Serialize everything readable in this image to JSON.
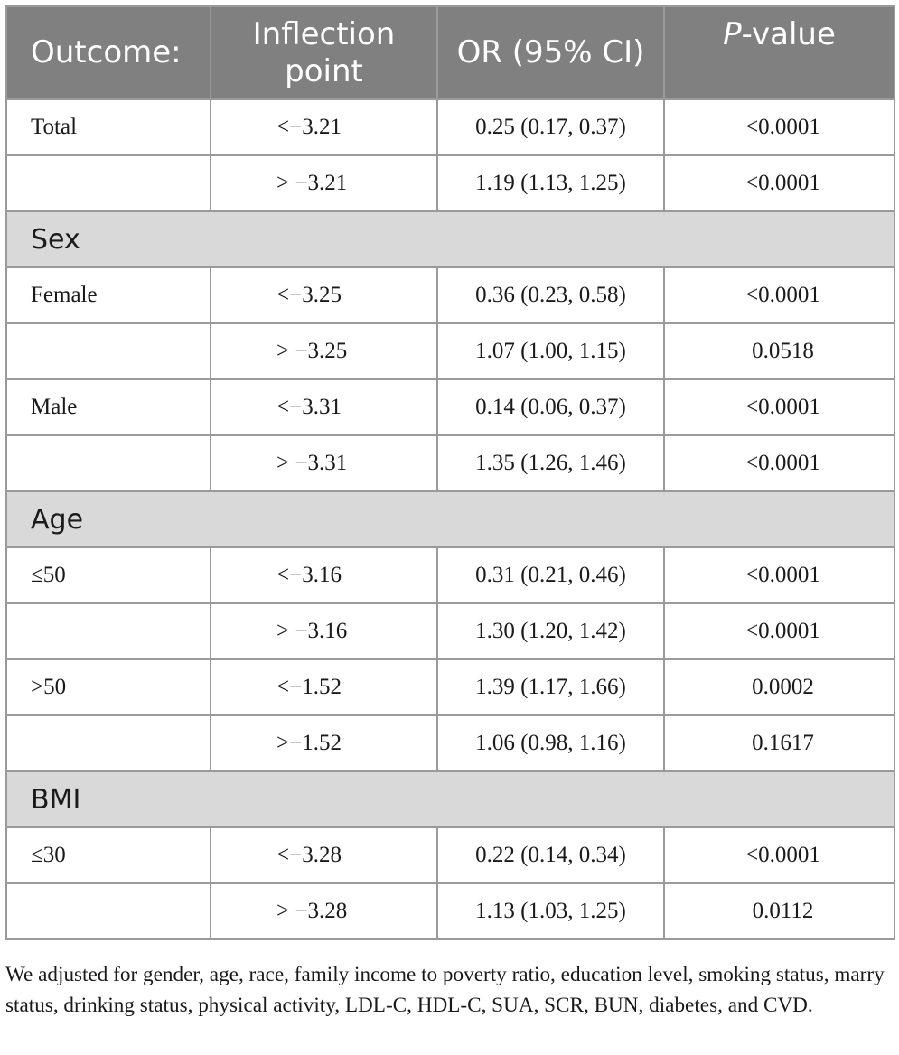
{
  "header": {
    "outcome": "Outcome:",
    "inflection": "Inflection point",
    "or": "OR (95% CI)",
    "p_italic": "P",
    "p_rest": "-value"
  },
  "rows": [
    {
      "type": "data",
      "label": "Total",
      "ip": "<−3.21",
      "or": "0.25 (0.17, 0.37)",
      "p": "<0.0001"
    },
    {
      "type": "data",
      "label": "",
      "ip": "> −3.21",
      "or": "1.19 (1.13, 1.25)",
      "p": "<0.0001"
    },
    {
      "type": "group",
      "label": "Sex"
    },
    {
      "type": "data",
      "label": "Female",
      "ip": "<−3.25",
      "or": "0.36 (0.23, 0.58)",
      "p": "<0.0001"
    },
    {
      "type": "data",
      "label": "",
      "ip": "> −3.25",
      "or": "1.07 (1.00, 1.15)",
      "p": "0.0518"
    },
    {
      "type": "data",
      "label": "Male",
      "ip": "<−3.31",
      "or": "0.14 (0.06, 0.37)",
      "p": "<0.0001"
    },
    {
      "type": "data",
      "label": "",
      "ip": "> −3.31",
      "or": "1.35 (1.26, 1.46)",
      "p": "<0.0001"
    },
    {
      "type": "group",
      "label": "Age"
    },
    {
      "type": "data",
      "label": "≤50",
      "ip": "<−3.16",
      "or": "0.31 (0.21, 0.46)",
      "p": "<0.0001"
    },
    {
      "type": "data",
      "label": "",
      "ip": "> −3.16",
      "or": "1.30 (1.20, 1.42)",
      "p": "<0.0001"
    },
    {
      "type": "data",
      "label": ">50",
      "ip": "<−1.52",
      "or": "1.39 (1.17, 1.66)",
      "p": "0.0002"
    },
    {
      "type": "data",
      "label": "",
      "ip": ">−1.52",
      "or": "1.06 (0.98, 1.16)",
      "p": "0.1617"
    },
    {
      "type": "group",
      "label": "BMI"
    },
    {
      "type": "data",
      "label": "≤30",
      "ip": "<−3.28",
      "or": "0.22 (0.14, 0.34)",
      "p": "<0.0001"
    },
    {
      "type": "data",
      "label": "",
      "ip": "> −3.28",
      "or": "1.13 (1.03, 1.25)",
      "p": "0.0112"
    }
  ],
  "footnote": "We adjusted for gender, age, race, family income to poverty ratio, education level, smoking status, marry status, drinking status, physical activity, LDL-C, HDL-C, SUA, SCR, BUN, diabetes, and CVD."
}
